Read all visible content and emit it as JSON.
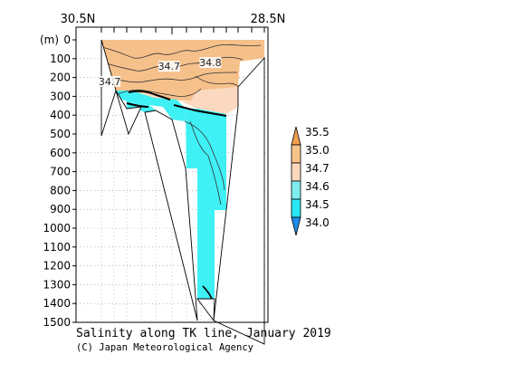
{
  "chart_data": {
    "type": "heatmap",
    "title": "Salinity along TK line, January 2019",
    "credit": "(C) Japan Meteorological Agency",
    "x_axis": {
      "left_label": "30.5N",
      "right_label": "28.5N",
      "range_lat": [
        30.5,
        28.5
      ]
    },
    "y_axis": {
      "unit_label": "(m)",
      "ticks": [
        0,
        100,
        200,
        300,
        400,
        500,
        600,
        700,
        800,
        900,
        1000,
        1100,
        1200,
        1300,
        1400,
        1500
      ],
      "range": [
        0,
        1500
      ],
      "inverted": true
    },
    "grid": true,
    "contour_labels": [
      {
        "text": "34.7",
        "lat": 29.53,
        "depth": 150
      },
      {
        "text": "34.8",
        "lat": 29.1,
        "depth": 130
      },
      {
        "text": "34.7",
        "lat": 30.15,
        "depth": 230
      }
    ],
    "colorbar": {
      "levels": [
        "35.5",
        "35.0",
        "34.7",
        "34.6",
        "34.5",
        "34.0"
      ],
      "colors": [
        "#f0a050",
        "#f7c58c",
        "#fcd7bc",
        "#7fecf0",
        "#27e7f5",
        "#1c8ee8"
      ],
      "placement": "right"
    },
    "colors": {
      "fresh": "#3ff0f5",
      "mid": "#fbd8c0",
      "salty": "#f6c08a",
      "white_gap": "#ffffff"
    }
  }
}
